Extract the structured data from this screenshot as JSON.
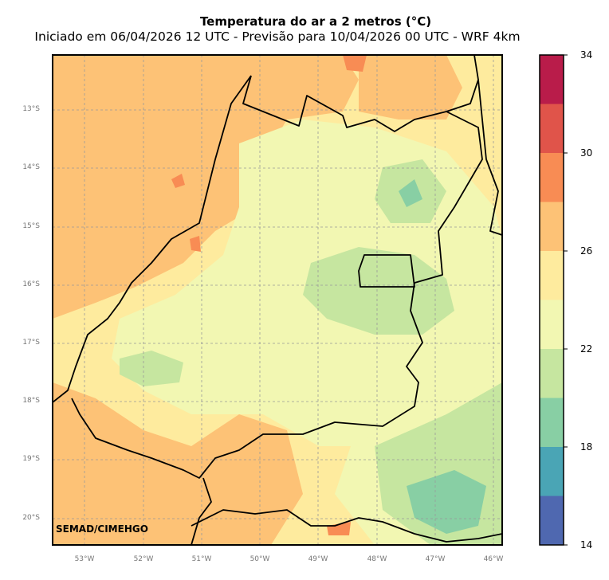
{
  "title": "Temperatura do ar a 2 metros (°C)",
  "subtitle": "Iniciado em 06/04/2026 12 UTC - Previsão para 10/04/2026 00 UTC - WRF 4km",
  "credit": "SEMAD/CIMEHGO",
  "latitude_labels": [
    "13°S",
    "14°S",
    "15°S",
    "16°S",
    "17°S",
    "18°S",
    "19°S",
    "20°S"
  ],
  "longitude_labels": [
    "53°W",
    "52°W",
    "51°W",
    "50°W",
    "49°W",
    "48°W",
    "47°W",
    "46°W"
  ],
  "colorbar": {
    "tick_labels": [
      "34",
      "30",
      "26",
      "22",
      "18",
      "14"
    ],
    "bins": [
      {
        "from": 32,
        "to": 34,
        "color": "#b91c4a"
      },
      {
        "from": 30,
        "to": 32,
        "color": "#e0544a"
      },
      {
        "from": 28,
        "to": 30,
        "color": "#f88c54"
      },
      {
        "from": 26,
        "to": 28,
        "color": "#fdc276"
      },
      {
        "from": 24,
        "to": 26,
        "color": "#feeb9e"
      },
      {
        "from": 22,
        "to": 24,
        "color": "#f2f7b2"
      },
      {
        "from": 20,
        "to": 22,
        "color": "#c6e6a0"
      },
      {
        "from": 18,
        "to": 20,
        "color": "#88cfa4"
      },
      {
        "from": 16,
        "to": 18,
        "color": "#4aa5b5"
      },
      {
        "from": 14,
        "to": 16,
        "color": "#4f68b0"
      }
    ]
  }
}
